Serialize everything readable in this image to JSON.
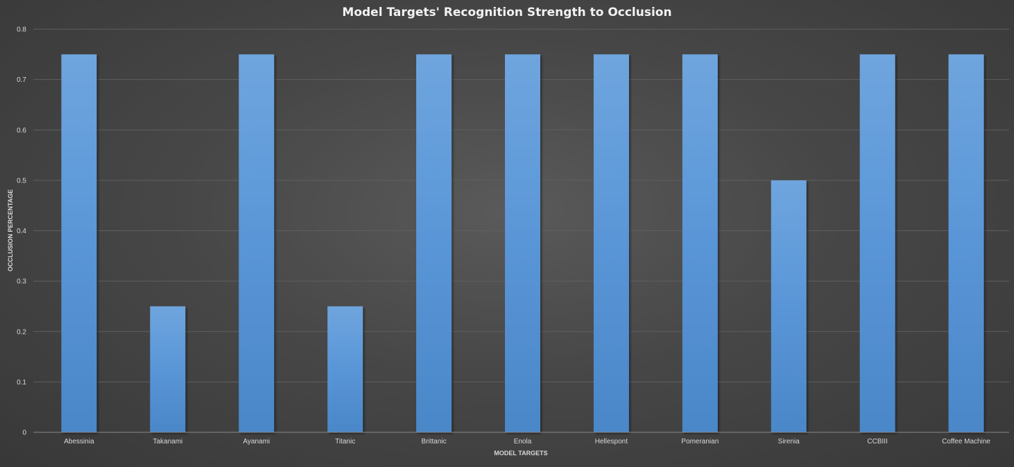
{
  "chart_data": {
    "type": "bar",
    "title": "Model Targets' Recognition Strength to Occlusion",
    "xlabel": "MODEL TARGETS",
    "ylabel": "OCCLUSION PERCENTAGE",
    "categories": [
      "Abessinia",
      "Takanami",
      "Ayanami",
      "Titanic",
      "Brittanic",
      "Enola",
      "Hellespont",
      "Pomeranian",
      "Sirenia",
      "CCBIII",
      "Coffee Machine"
    ],
    "values": [
      0.75,
      0.25,
      0.75,
      0.25,
      0.75,
      0.75,
      0.75,
      0.75,
      0.5,
      0.75,
      0.75
    ],
    "ylim": [
      0,
      0.8
    ],
    "yticks": [
      0,
      0.1,
      0.2,
      0.3,
      0.4,
      0.5,
      0.6,
      0.7,
      0.8
    ],
    "ytick_labels": [
      "0",
      "0.1",
      "0.2",
      "0.3",
      "0.4",
      "0.5",
      "0.6",
      "0.7",
      "0.8"
    ],
    "grid": true,
    "legend": "none",
    "colors": {
      "bar_top": "#6fa5de",
      "bar_bottom": "#4a87c8",
      "gridline": "#5f5f5f",
      "axis": "#8a8a8a"
    }
  }
}
